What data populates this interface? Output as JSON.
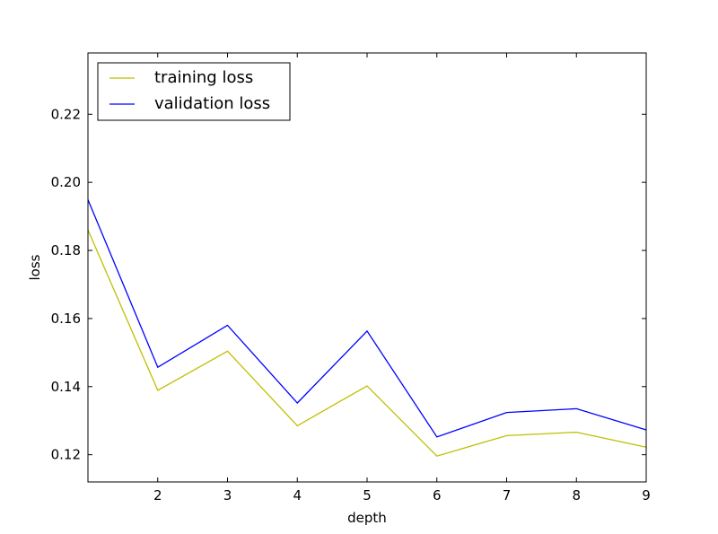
{
  "chart_data": {
    "type": "line",
    "title": "",
    "xlabel": "depth",
    "ylabel": "loss",
    "x": [
      1,
      2,
      3,
      4,
      5,
      6,
      7,
      8,
      9
    ],
    "xlim": [
      1,
      9
    ],
    "ylim": [
      0.112,
      0.238
    ],
    "xticks": [
      2,
      3,
      4,
      5,
      6,
      7,
      8,
      9
    ],
    "xtick_labels": [
      "2",
      "3",
      "4",
      "5",
      "6",
      "7",
      "8",
      "9"
    ],
    "yticks": [
      0.12,
      0.14,
      0.16,
      0.18,
      0.2,
      0.22
    ],
    "ytick_labels": [
      "0.12",
      "0.14",
      "0.16",
      "0.18",
      "0.20",
      "0.22"
    ],
    "grid": false,
    "legend_position": "top-left",
    "series": [
      {
        "name": "training loss",
        "color": "#bfbf00",
        "values": [
          0.186,
          0.1389,
          0.1504,
          0.1285,
          0.1402,
          0.1196,
          0.1256,
          0.1266,
          0.1222
        ]
      },
      {
        "name": "validation loss",
        "color": "#0000ff",
        "values": [
          0.1949,
          0.1457,
          0.158,
          0.1352,
          0.1563,
          0.1252,
          0.1324,
          0.1335,
          0.1273
        ]
      }
    ]
  }
}
